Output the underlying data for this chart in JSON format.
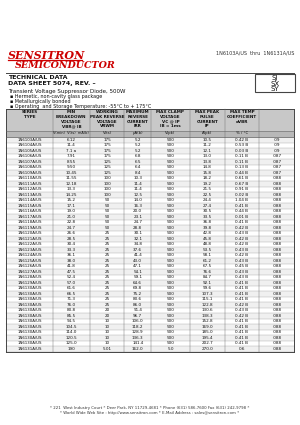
{
  "title_company": "SENSITRON",
  "title_sub": "SEMICONDUCTOR",
  "part_range": "1N6103A/US  thru  1N6131A/US",
  "tech_data": "TECHNICAL DATA",
  "data_sheet": "DATA SHEET 5074, REV. –",
  "description": "Transient Voltage Suppressor Diode, 500W",
  "bullets": [
    "Hermetic, non-cavity glass package",
    "Metallurgically bonded",
    "Operating  and Storage Temperature: -55°C to + 175°C"
  ],
  "package_types": [
    "SJ",
    "SX",
    "SY"
  ],
  "rows": [
    [
      "1N6103A/US",
      "6.12",
      "175",
      "5.2",
      "500",
      "10.5",
      "0.42 B",
      ".09"
    ],
    [
      "1N6104A/US",
      "11.4",
      "175",
      "5.2",
      "500",
      "11.2",
      "0.53 B",
      ".09"
    ],
    [
      "1N6105A/US",
      "7.1 a",
      "175",
      "5.2",
      "500",
      "12.1",
      "0.03 B",
      ".09"
    ],
    [
      "1N6106A/US",
      "7.91",
      "175",
      "6.8",
      "500",
      "13.0",
      "0.11 B",
      ".087"
    ],
    [
      "1N6107A/US",
      "8.55",
      "125",
      "6.5",
      "500",
      "13.8",
      "0.11 B",
      ".087"
    ],
    [
      "1N6108A/US",
      "9.50",
      "125",
      "6.4",
      "500",
      "14.8",
      "0.13 B",
      ".087"
    ],
    [
      "1N6109A/US",
      "10.45",
      "125",
      "8.4",
      "500",
      "15.8",
      "0.44 B",
      ".087"
    ],
    [
      "1N6110A/US",
      "11.55",
      "100",
      "10.3",
      "500",
      "18.2",
      "0.61 B",
      ".088"
    ],
    [
      "1N6111A/US",
      "12.18",
      "100",
      "11.4",
      "500",
      "19.2",
      "0.67 B",
      ".088"
    ],
    [
      "1N6112A/US",
      "13.3",
      "100",
      "11.4",
      "500",
      "21.5",
      "0.91 B",
      ".088"
    ],
    [
      "1N6113A/US",
      "14.25",
      "100",
      "12.5",
      "500",
      "22.5",
      "0.02 B",
      ".088"
    ],
    [
      "1N6114A/US",
      "15.2",
      "50",
      "14.0",
      "500",
      "24.4",
      "1.04 B",
      ".088"
    ],
    [
      "1N6115A/US",
      "17.1",
      "50",
      "16.3",
      "500",
      "27.4",
      "0.41 B",
      ".088"
    ],
    [
      "1N6116A/US",
      "19.0",
      "50",
      "20.0",
      "500",
      "30.5",
      "0.44 B",
      ".088"
    ],
    [
      "1N6117A/US",
      "21.0",
      "50",
      "23.1",
      "500",
      "33.5",
      "0.01 B",
      ".088"
    ],
    [
      "1N6118A/US",
      "22.8",
      "50",
      "24.7",
      "500",
      "36.8",
      "0.41 B",
      ".088"
    ],
    [
      "1N6119A/US",
      "24.7",
      "50",
      "28.8",
      "500",
      "39.8",
      "0.42 B",
      ".088"
    ],
    [
      "1N6120A/US",
      "26.6",
      "25",
      "30.1",
      "500",
      "42.8",
      "0.43 B",
      ".088"
    ],
    [
      "1N6121A/US",
      "28.5",
      "25",
      "32.1",
      "500",
      "45.8",
      "0.42 B",
      ".088"
    ],
    [
      "1N6122A/US",
      "30.4",
      "25",
      "34.8",
      "500",
      "48.8",
      "0.42 B",
      ".088"
    ],
    [
      "1N6123A/US",
      "33.3",
      "25",
      "37.6",
      "500",
      "53.5",
      "0.43 B",
      ".088"
    ],
    [
      "1N6124A/US",
      "36.1",
      "25",
      "41.4",
      "500",
      "58.1",
      "0.42 B",
      ".088"
    ],
    [
      "1N6125A/US",
      "38.0",
      "25",
      "43.0",
      "500",
      "61.2",
      "0.43 B",
      ".088"
    ],
    [
      "1N6126A/US",
      "41.8",
      "25",
      "47.1",
      "500",
      "67.5",
      "0.45 B",
      ".088"
    ],
    [
      "1N6127A/US",
      "47.5",
      "25",
      "54.1",
      "500",
      "76.6",
      "0.43 B",
      ".088"
    ],
    [
      "1N6128A/US",
      "52.4",
      "25",
      "59.1",
      "500",
      "84.7",
      "0.43 B",
      ".088"
    ],
    [
      "1N6129A/US",
      "57.0",
      "25",
      "64.6",
      "500",
      "92.1",
      "0.41 B",
      ".088"
    ],
    [
      "1N6130A/US",
      "61.6",
      "25",
      "69.8",
      "500",
      "99.6",
      "0.41 B",
      ".088"
    ],
    [
      "1N6130A/US",
      "66.5",
      "25",
      "75.2",
      "500",
      "107.3",
      "0.41 B",
      ".088"
    ],
    [
      "1N6130A/US",
      "71.3",
      "25",
      "80.6",
      "500",
      "115.1",
      "0.41 B",
      ".088"
    ],
    [
      "1N6130A/US",
      "76.0",
      "25",
      "86.0",
      "500",
      "122.8",
      "0.42 B",
      ".088"
    ],
    [
      "1N6130A/US",
      "80.8",
      "20",
      "91.4",
      "500",
      "130.6",
      "0.43 B",
      ".088"
    ],
    [
      "1N6130A/US",
      "85.5",
      "20",
      "96.7",
      "500",
      "138.3",
      "0.42 B",
      ".088"
    ],
    [
      "1N6130A/US",
      "94.5",
      "10",
      "106.0",
      "500",
      "152.8",
      "0.41 B",
      ".088"
    ],
    [
      "1N6130A/US",
      "104.5",
      "10",
      "118.2",
      "500",
      "169.0",
      "0.41 B",
      ".088"
    ],
    [
      "1N6130A/US",
      "114.0",
      "10",
      "128.9",
      "500",
      "185.0",
      "0.41 B",
      ".088"
    ],
    [
      "1N6130A/US",
      "120.5",
      "10",
      "136.3",
      "500",
      "195.4",
      "0.41 B",
      ".088"
    ],
    [
      "1N6130A/US",
      "125.0",
      "10",
      "141.4",
      "500",
      "202.7",
      "0.41 B",
      ".088"
    ],
    [
      "1N6131A/US",
      "190",
      "5.01",
      "162.0",
      "5.0",
      "270.0",
      "0.6",
      ".088"
    ]
  ],
  "footer1": "* 221  West Industry Court * Deer Park, NY 11729-4681 * Phone (631) 586-7600 Fax (631) 242-9798 *",
  "footer2": "* World Wide Web Site : http://www.sensitron.com * E-Mail Address : sales@sensitron.com *",
  "bg_color": "#ffffff",
  "red_color": "#cc0000",
  "hdr_bg": "#c8c8c8",
  "sub_bg": "#b8b8b8",
  "row_even": "#f0f0f0",
  "row_odd": "#ffffff"
}
